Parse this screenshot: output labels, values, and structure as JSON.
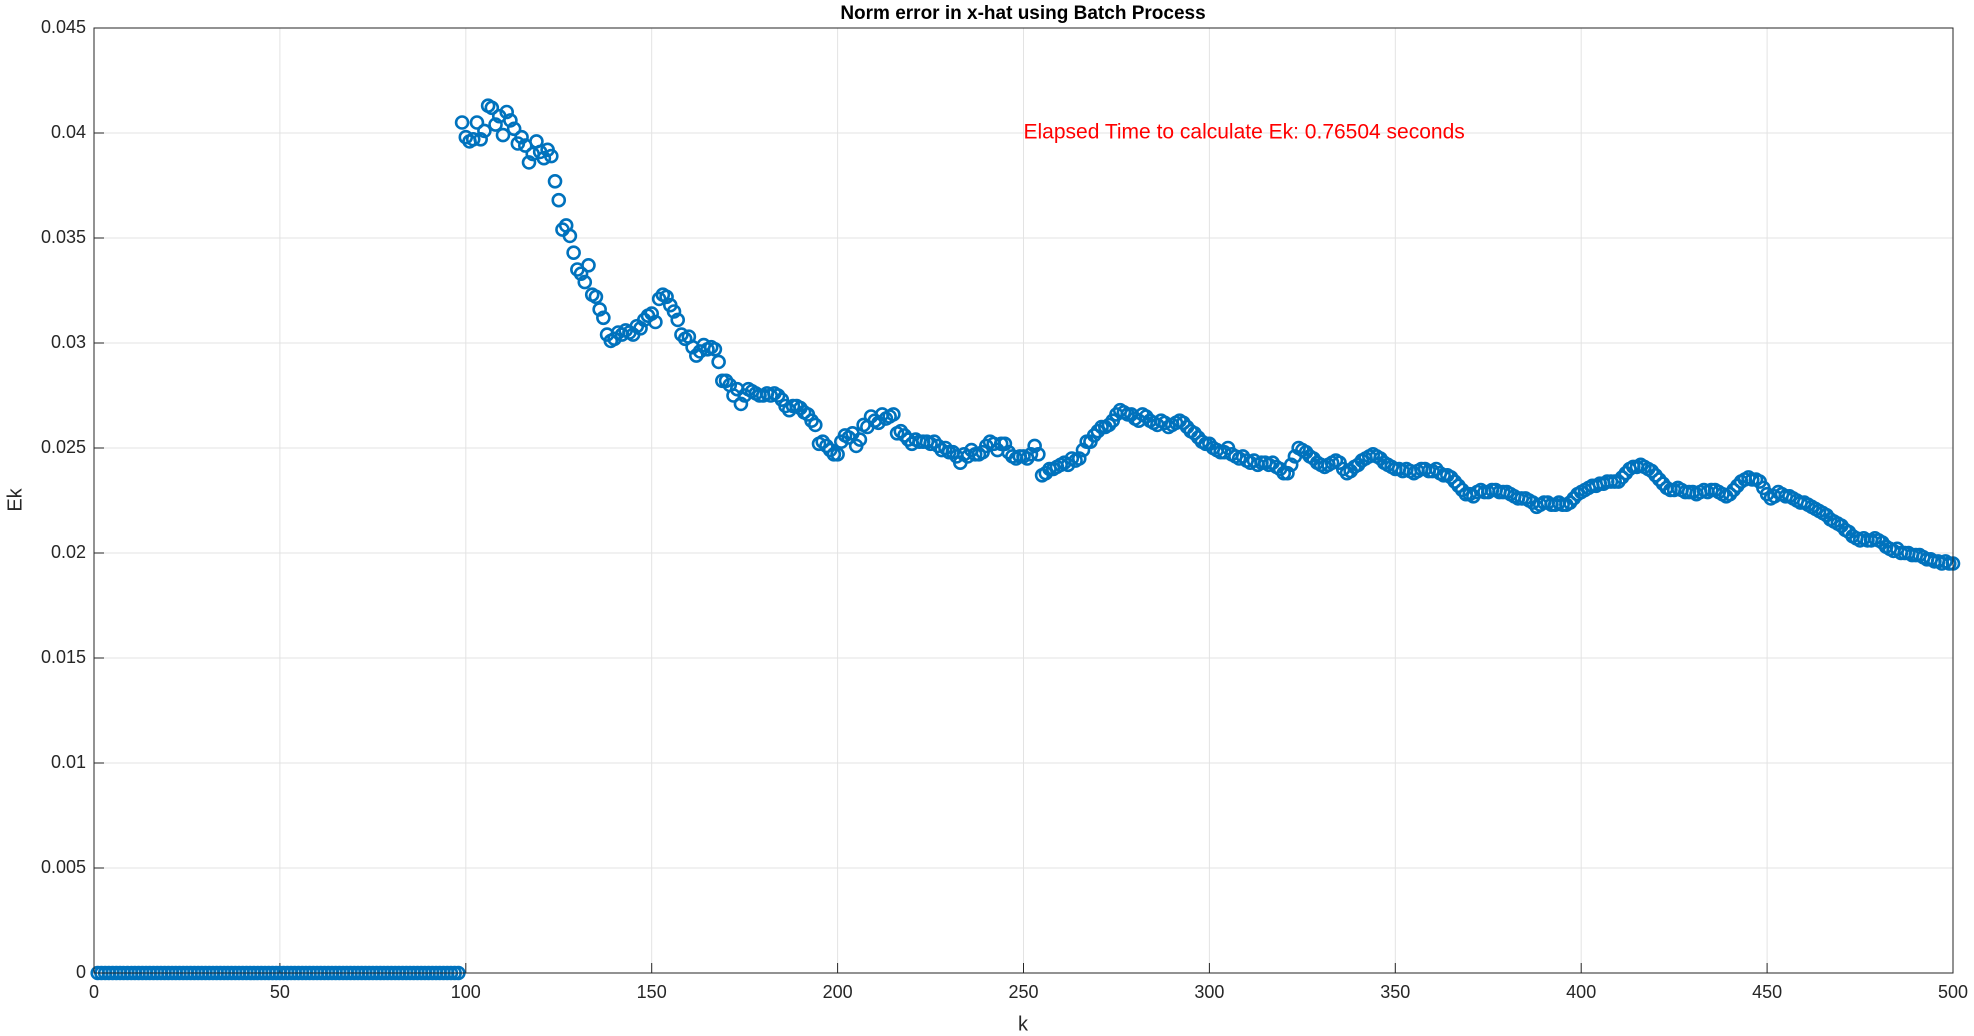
{
  "chart_data": {
    "type": "scatter",
    "title": "Norm error in x-hat using Batch Process",
    "x_label": "k",
    "y_label": "Ek",
    "annotation": {
      "text": "Elapsed Time to calculate Ek: 0.76504 seconds",
      "x": 250,
      "y": 0.04,
      "color": "#ff0000"
    },
    "xlim": [
      0,
      500
    ],
    "xticks": [
      0,
      50,
      100,
      150,
      200,
      250,
      300,
      350,
      400,
      450,
      500
    ],
    "ylim": [
      0,
      0.045
    ],
    "yticks": [
      0,
      0.005,
      0.01,
      0.015,
      0.02,
      0.025,
      0.03,
      0.035,
      0.04,
      0.045
    ],
    "grid": true,
    "series": [
      {
        "color": "#0072bd",
        "x": [
          1,
          2,
          3,
          4,
          5,
          6,
          7,
          8,
          9,
          10,
          11,
          12,
          13,
          14,
          15,
          16,
          17,
          18,
          19,
          20,
          21,
          22,
          23,
          24,
          25,
          26,
          27,
          28,
          29,
          30,
          31,
          32,
          33,
          34,
          35,
          36,
          37,
          38,
          39,
          40,
          41,
          42,
          43,
          44,
          45,
          46,
          47,
          48,
          49,
          50,
          51,
          52,
          53,
          54,
          55,
          56,
          57,
          58,
          59,
          60,
          61,
          62,
          63,
          64,
          65,
          66,
          67,
          68,
          69,
          70,
          71,
          72,
          73,
          74,
          75,
          76,
          77,
          78,
          79,
          80,
          81,
          82,
          83,
          84,
          85,
          86,
          87,
          88,
          89,
          90,
          91,
          92,
          93,
          94,
          95,
          96,
          97,
          98,
          99,
          100,
          101,
          102,
          103,
          104,
          105,
          106,
          107,
          108,
          109,
          110,
          111,
          112,
          113,
          114,
          115,
          116,
          117,
          118,
          119,
          120,
          121,
          122,
          123,
          124,
          125,
          126,
          127,
          128,
          129,
          130,
          131,
          132,
          133,
          134,
          135,
          136,
          137,
          138,
          139,
          140,
          141,
          142,
          143,
          144,
          145,
          146,
          147,
          148,
          149,
          150,
          151,
          152,
          153,
          154,
          155,
          156,
          157,
          158,
          159,
          160,
          161,
          162,
          163,
          164,
          165,
          166,
          167,
          168,
          169,
          170,
          171,
          172,
          173,
          174,
          175,
          176,
          177,
          178,
          179,
          180,
          181,
          182,
          183,
          184,
          185,
          186,
          187,
          188,
          189,
          190,
          191,
          192,
          193,
          194,
          195,
          196,
          197,
          198,
          199,
          200,
          201,
          202,
          203,
          204,
          205,
          206,
          207,
          208,
          209,
          210,
          211,
          212,
          213,
          214,
          215,
          216,
          217,
          218,
          219,
          220,
          221,
          222,
          223,
          224,
          225,
          226,
          227,
          228,
          229,
          230,
          231,
          232,
          233,
          234,
          235,
          236,
          237,
          238,
          239,
          240,
          241,
          242,
          243,
          244,
          245,
          246,
          247,
          248,
          249,
          250,
          251,
          252,
          253,
          254,
          255,
          256,
          257,
          258,
          259,
          260,
          261,
          262,
          263,
          264,
          265,
          266,
          267,
          268,
          269,
          270,
          271,
          272,
          273,
          274,
          275,
          276,
          277,
          278,
          279,
          280,
          281,
          282,
          283,
          284,
          285,
          286,
          287,
          288,
          289,
          290,
          291,
          292,
          293,
          294,
          295,
          296,
          297,
          298,
          299,
          300,
          301,
          302,
          303,
          304,
          305,
          306,
          307,
          308,
          309,
          310,
          311,
          312,
          313,
          314,
          315,
          316,
          317,
          318,
          319,
          320,
          321,
          322,
          323,
          324,
          325,
          326,
          327,
          328,
          329,
          330,
          331,
          332,
          333,
          334,
          335,
          336,
          337,
          338,
          339,
          340,
          341,
          342,
          343,
          344,
          345,
          346,
          347,
          348,
          349,
          350,
          351,
          352,
          353,
          354,
          355,
          356,
          357,
          358,
          359,
          360,
          361,
          362,
          363,
          364,
          365,
          366,
          367,
          368,
          369,
          370,
          371,
          372,
          373,
          374,
          375,
          376,
          377,
          378,
          379,
          380,
          381,
          382,
          383,
          384,
          385,
          386,
          387,
          388,
          389,
          390,
          391,
          392,
          393,
          394,
          395,
          396,
          397,
          398,
          399,
          400,
          401,
          402,
          403,
          404,
          405,
          406,
          407,
          408,
          409,
          410,
          411,
          412,
          413,
          414,
          415,
          416,
          417,
          418,
          419,
          420,
          421,
          422,
          423,
          424,
          425,
          426,
          427,
          428,
          429,
          430,
          431,
          432,
          433,
          434,
          435,
          436,
          437,
          438,
          439,
          440,
          441,
          442,
          443,
          444,
          445,
          446,
          447,
          448,
          449,
          450,
          451,
          452,
          453,
          454,
          455,
          456,
          457,
          458,
          459,
          460,
          461,
          462,
          463,
          464,
          465,
          466,
          467,
          468,
          469,
          470,
          471,
          472,
          473,
          474,
          475,
          476,
          477,
          478,
          479,
          480,
          481,
          482,
          483,
          484,
          485,
          486,
          487,
          488,
          489,
          490,
          491,
          492,
          493,
          494,
          495,
          496,
          497,
          498,
          499,
          500
        ],
        "values": [
          0,
          0,
          0,
          0,
          0,
          0,
          0,
          0,
          0,
          0,
          0,
          0,
          0,
          0,
          0,
          0,
          0,
          0,
          0,
          0,
          0,
          0,
          0,
          0,
          0,
          0,
          0,
          0,
          0,
          0,
          0,
          0,
          0,
          0,
          0,
          0,
          0,
          0,
          0,
          0,
          0,
          0,
          0,
          0,
          0,
          0,
          0,
          0,
          0,
          0,
          0,
          0,
          0,
          0,
          0,
          0,
          0,
          0,
          0,
          0,
          0,
          0,
          0,
          0,
          0,
          0,
          0,
          0,
          0,
          0,
          0,
          0,
          0,
          0,
          0,
          0,
          0,
          0,
          0,
          0,
          0,
          0,
          0,
          0,
          0,
          0,
          0,
          0,
          0,
          0,
          0,
          0,
          0,
          0,
          0,
          0,
          0,
          0,
          0.0405,
          0.0398,
          0.0396,
          0.0397,
          0.0405,
          0.0397,
          0.0401,
          0.0413,
          0.0412,
          0.0404,
          0.0408,
          0.0399,
          0.041,
          0.0406,
          0.0402,
          0.0395,
          0.0398,
          0.0394,
          0.0386,
          0.039,
          0.0396,
          0.0391,
          0.0388,
          0.0392,
          0.0389,
          0.0377,
          0.0368,
          0.0354,
          0.0356,
          0.0351,
          0.0343,
          0.0335,
          0.0333,
          0.0329,
          0.0337,
          0.0323,
          0.0322,
          0.0316,
          0.0312,
          0.0304,
          0.0301,
          0.0302,
          0.0305,
          0.0304,
          0.0306,
          0.0305,
          0.0304,
          0.0308,
          0.0307,
          0.0311,
          0.0313,
          0.0314,
          0.031,
          0.0321,
          0.0323,
          0.0322,
          0.0318,
          0.0315,
          0.0311,
          0.0304,
          0.0302,
          0.0303,
          0.0298,
          0.0294,
          0.0296,
          0.0299,
          0.0297,
          0.0298,
          0.0297,
          0.0291,
          0.0282,
          0.0282,
          0.028,
          0.0275,
          0.0278,
          0.0271,
          0.0275,
          0.0278,
          0.0277,
          0.0276,
          0.0275,
          0.0275,
          0.0276,
          0.0275,
          0.0276,
          0.0275,
          0.0273,
          0.027,
          0.0268,
          0.027,
          0.027,
          0.0269,
          0.0267,
          0.0266,
          0.0263,
          0.0261,
          0.0252,
          0.0253,
          0.0251,
          0.0249,
          0.0247,
          0.0247,
          0.0253,
          0.0256,
          0.0255,
          0.0257,
          0.0251,
          0.0254,
          0.0261,
          0.026,
          0.0265,
          0.0263,
          0.0262,
          0.0266,
          0.0264,
          0.0265,
          0.0266,
          0.0257,
          0.0258,
          0.0256,
          0.0254,
          0.0252,
          0.0254,
          0.0253,
          0.0253,
          0.0253,
          0.0252,
          0.0253,
          0.0251,
          0.0249,
          0.025,
          0.0248,
          0.0248,
          0.0246,
          0.0243,
          0.0247,
          0.0246,
          0.0249,
          0.0247,
          0.0247,
          0.0248,
          0.0251,
          0.0253,
          0.0252,
          0.0249,
          0.0252,
          0.0252,
          0.0248,
          0.0246,
          0.0245,
          0.0246,
          0.0246,
          0.0245,
          0.0247,
          0.0251,
          0.0247,
          0.0237,
          0.0238,
          0.024,
          0.024,
          0.0241,
          0.0242,
          0.0243,
          0.0242,
          0.0245,
          0.0244,
          0.0245,
          0.0249,
          0.0253,
          0.0253,
          0.0256,
          0.0258,
          0.026,
          0.026,
          0.0261,
          0.0263,
          0.0266,
          0.0268,
          0.0267,
          0.0266,
          0.0266,
          0.0264,
          0.0263,
          0.0266,
          0.0265,
          0.0263,
          0.0262,
          0.0261,
          0.0263,
          0.0262,
          0.026,
          0.0261,
          0.0262,
          0.0263,
          0.0262,
          0.026,
          0.0258,
          0.0257,
          0.0255,
          0.0253,
          0.0252,
          0.0252,
          0.025,
          0.0249,
          0.0248,
          0.0248,
          0.025,
          0.0247,
          0.0246,
          0.0245,
          0.0246,
          0.0244,
          0.0243,
          0.0244,
          0.0242,
          0.0243,
          0.0243,
          0.0242,
          0.0243,
          0.0241,
          0.024,
          0.0238,
          0.0238,
          0.0242,
          0.0246,
          0.025,
          0.0249,
          0.0248,
          0.0246,
          0.0245,
          0.0243,
          0.0242,
          0.0241,
          0.0242,
          0.0243,
          0.0244,
          0.0243,
          0.024,
          0.0238,
          0.0239,
          0.0241,
          0.0242,
          0.0244,
          0.0245,
          0.0246,
          0.0247,
          0.0246,
          0.0245,
          0.0243,
          0.0242,
          0.0241,
          0.024,
          0.024,
          0.0239,
          0.024,
          0.0239,
          0.0238,
          0.0239,
          0.024,
          0.024,
          0.0239,
          0.0239,
          0.024,
          0.0238,
          0.0237,
          0.0237,
          0.0236,
          0.0234,
          0.0232,
          0.023,
          0.0228,
          0.0228,
          0.0227,
          0.0229,
          0.023,
          0.0229,
          0.0229,
          0.023,
          0.023,
          0.0229,
          0.0229,
          0.0229,
          0.0228,
          0.0227,
          0.0226,
          0.0226,
          0.0226,
          0.0225,
          0.0224,
          0.0222,
          0.0223,
          0.0224,
          0.0224,
          0.0223,
          0.0223,
          0.0224,
          0.0223,
          0.0223,
          0.0224,
          0.0226,
          0.0228,
          0.0229,
          0.023,
          0.0231,
          0.0232,
          0.0232,
          0.0233,
          0.0233,
          0.0234,
          0.0234,
          0.0234,
          0.0234,
          0.0236,
          0.0238,
          0.024,
          0.0241,
          0.0241,
          0.0242,
          0.0241,
          0.024,
          0.0239,
          0.0237,
          0.0235,
          0.0233,
          0.0231,
          0.023,
          0.023,
          0.0231,
          0.023,
          0.0229,
          0.0229,
          0.0229,
          0.0228,
          0.0229,
          0.023,
          0.0229,
          0.023,
          0.023,
          0.0229,
          0.0228,
          0.0227,
          0.0228,
          0.023,
          0.0232,
          0.0234,
          0.0235,
          0.0236,
          0.0235,
          0.0235,
          0.0234,
          0.0231,
          0.0228,
          0.0226,
          0.0227,
          0.0229,
          0.0228,
          0.0227,
          0.0227,
          0.0226,
          0.0225,
          0.0224,
          0.0224,
          0.0223,
          0.0222,
          0.0221,
          0.022,
          0.0219,
          0.0218,
          0.0216,
          0.0215,
          0.0214,
          0.0213,
          0.0211,
          0.021,
          0.0208,
          0.0207,
          0.0206,
          0.0207,
          0.0206,
          0.0206,
          0.0207,
          0.0206,
          0.0205,
          0.0203,
          0.0202,
          0.0201,
          0.0202,
          0.02,
          0.02,
          0.02,
          0.0199,
          0.0199,
          0.0199,
          0.0198,
          0.0197,
          0.0197,
          0.0196,
          0.0196,
          0.0195,
          0.0196,
          0.0195,
          0.0195
        ]
      }
    ]
  }
}
